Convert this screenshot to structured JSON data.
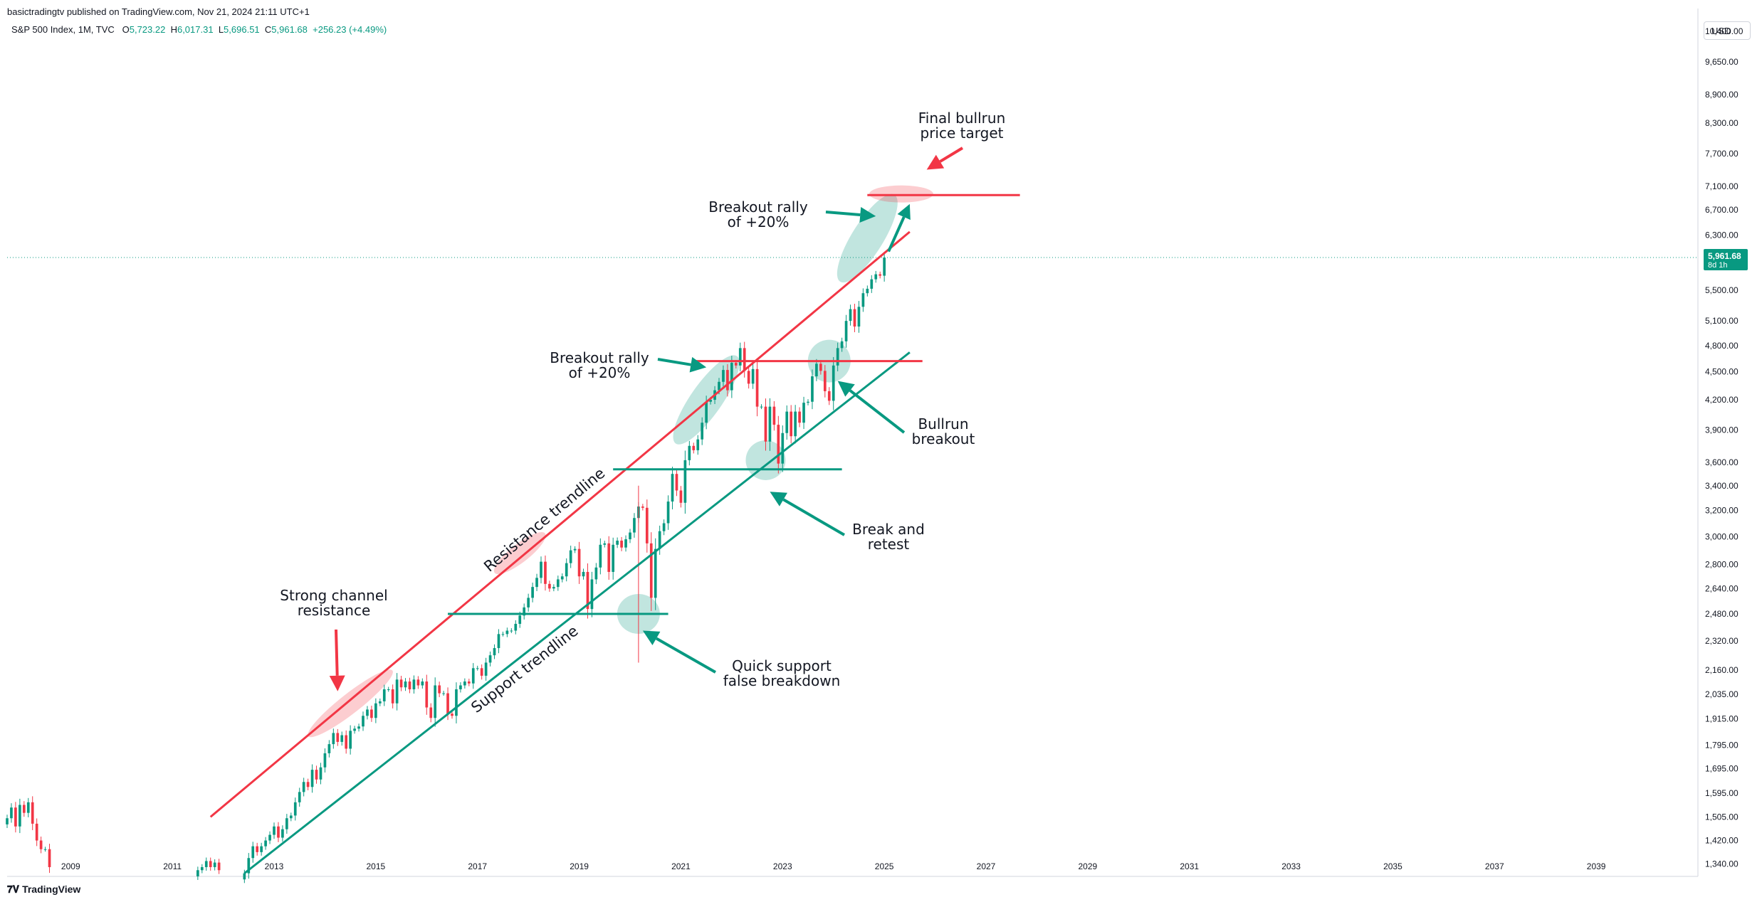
{
  "header": {
    "text": "basictradingtv published on TradingView.com, Nov 21, 2024 21:11 UTC+1"
  },
  "legend": {
    "symbol": "S&P 500 Index, 1M, TVC",
    "open_label": "O",
    "open": "5,723.22",
    "high_label": "H",
    "high": "6,017.31",
    "low_label": "L",
    "low": "5,696.51",
    "close_label": "C",
    "close": "5,961.68",
    "change": "+256.23 (+4.49%)"
  },
  "currency": "USD",
  "last_price": {
    "value": "5,961.68",
    "countdown": "8d 1h"
  },
  "footer": {
    "brand": "TradingView",
    "logo": "tv-logo-icon"
  },
  "colors": {
    "up": "#089981",
    "down": "#f23645",
    "resistance": "#f23645",
    "support": "#089981"
  },
  "chart_data": {
    "type": "candlestick",
    "y_scale": "log",
    "ylim": [
      1300,
      11000
    ],
    "xlim": [
      "2007-10",
      "2041-01"
    ],
    "x_tick_labels": [
      "2009",
      "2011",
      "2013",
      "2015",
      "2017",
      "2019",
      "2021",
      "2023",
      "2025",
      "2027",
      "2029",
      "2031",
      "2033",
      "2035",
      "2037",
      "2039"
    ],
    "y_tick_labels": [
      "10,400.00",
      "9,650.00",
      "8,900.00",
      "8,300.00",
      "7,700.00",
      "7,100.00",
      "6,700.00",
      "6,300.00",
      "5,500.00",
      "5,100.00",
      "4,800.00",
      "4,500.00",
      "4,200.00",
      "3,900.00",
      "3,600.00",
      "3,400.00",
      "3,200.00",
      "3,000.00",
      "2,800.00",
      "2,640.00",
      "2,480.00",
      "2,320.00",
      "2,160.00",
      "2,035.00",
      "1,915.00",
      "1,795.00",
      "1,695.00",
      "1,595.00",
      "1,505.00",
      "1,420.00",
      "1,340.00"
    ],
    "series": [
      {
        "period": "2007-2008",
        "closes": [
          1500,
          1540,
          1470,
          1550,
          1520,
          1560,
          1480,
          1420,
          1390,
          1390,
          1330
        ]
      },
      {
        "period": "2011",
        "closes": [
          1320,
          1330,
          1350,
          1330,
          1345,
          1320
        ]
      },
      {
        "period": "2012-2025",
        "closes": [
          1310,
          1360,
          1400,
          1380,
          1400,
          1420,
          1440,
          1470,
          1430,
          1460,
          1500,
          1510,
          1560,
          1600,
          1640,
          1620,
          1690,
          1650,
          1700,
          1760,
          1800,
          1850,
          1810,
          1840,
          1780,
          1860,
          1870,
          1880,
          1930,
          1960,
          1920,
          1990,
          2000,
          2060,
          2060,
          1990,
          2110,
          2070,
          2100,
          2060,
          2110,
          2080,
          2100,
          1970,
          1920,
          2080,
          2040,
          2040,
          1940,
          1930,
          2060,
          2080,
          2100,
          2090,
          2170,
          2170,
          2130,
          2200,
          2240,
          2280,
          2360,
          2360,
          2380,
          2380,
          2420,
          2470,
          2520,
          2580,
          2650,
          2710,
          2820,
          2670,
          2640,
          2650,
          2700,
          2720,
          2810,
          2900,
          2910,
          2720,
          2750,
          2510,
          2700,
          2780,
          2940,
          2950,
          2750,
          2940,
          2970,
          2920,
          2980,
          3030,
          3140,
          3230,
          3220,
          2950,
          2580,
          2910,
          3040,
          3100,
          3270,
          3500,
          3360,
          3260,
          3620,
          3750,
          3710,
          3810,
          3970,
          4180,
          4200,
          4300,
          4390,
          4520,
          4300,
          4600,
          4570,
          4770,
          4510,
          4370,
          4530,
          4130,
          4130,
          3790,
          4130,
          3950,
          3590,
          3870,
          4080,
          3840,
          4080,
          3970,
          4170,
          4180,
          4450,
          4590,
          4510,
          4290,
          4190,
          4570,
          4770,
          4850,
          5100,
          5250,
          5030,
          5280,
          5460,
          5520,
          5650,
          5720,
          5700,
          5960
        ]
      }
    ],
    "last_close": 5961.68,
    "lines": [
      {
        "name": "Resistance trendline",
        "color": "#f23645",
        "from": [
          "2011-10",
          1505
        ],
        "to": [
          "2025-07",
          6350
        ]
      },
      {
        "name": "Support trendline",
        "color": "#089981",
        "from": [
          "2012-06",
          1310
        ],
        "to": [
          "2025-07",
          4720
        ]
      },
      {
        "name": "support-level-2480",
        "color": "#089981",
        "from": [
          "2016-06",
          2480
        ],
        "to": [
          "2020-10",
          2480
        ]
      },
      {
        "name": "support-level-3540",
        "color": "#089981",
        "from": [
          "2019-09",
          3540
        ],
        "to": [
          "2024-03",
          3540
        ]
      },
      {
        "name": "resistance-level-4620",
        "color": "#f23645",
        "from": [
          "2021-04",
          4620
        ],
        "to": [
          "2025-10",
          4620
        ]
      },
      {
        "name": "target-level-6950",
        "color": "#f23645",
        "from": [
          "2024-09",
          6950
        ],
        "to": [
          "2027-09",
          6950
        ]
      }
    ],
    "annotations": [
      {
        "text": [
          "Final bullrun",
          "price target"
        ],
        "arrow_to": [
          "2025-11",
          7400
        ]
      },
      {
        "text": [
          "Breakout rally",
          "of +20%"
        ],
        "arrow_to": [
          "2024-11",
          6600
        ]
      },
      {
        "text": [
          "Breakout rally",
          "of +20%"
        ],
        "arrow_to": [
          "2021-07",
          4550
        ]
      },
      {
        "text": [
          "Bullrun",
          "breakout"
        ],
        "arrow_to": [
          "2024-02",
          4400
        ]
      },
      {
        "text": [
          "Break and",
          "retest"
        ],
        "arrow_to": [
          "2022-10",
          3350
        ]
      },
      {
        "text": [
          "Quick support",
          "false breakdown"
        ],
        "arrow_to": [
          "2020-04",
          2380
        ]
      },
      {
        "text": [
          "Strong channel",
          "resistance"
        ],
        "arrow_to": [
          "2014-04",
          2050
        ]
      }
    ]
  }
}
